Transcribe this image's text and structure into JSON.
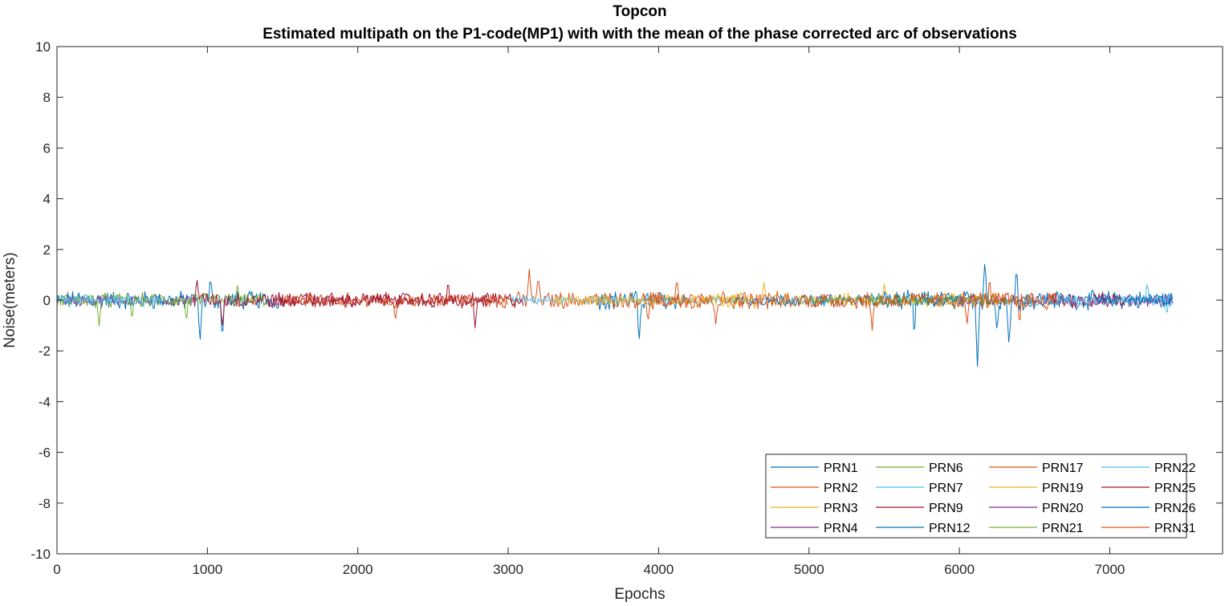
{
  "chart_data": {
    "type": "line",
    "title": "Topcon",
    "subtitle": "Estimated multipath on the P1-code(MP1) with with the mean of the phase corrected arc of observations",
    "xlabel": "Epochs",
    "ylabel": "Noise(meters)",
    "xlim": [
      0,
      7750
    ],
    "ylim": [
      -10,
      10
    ],
    "xticks": [
      0,
      1000,
      2000,
      3000,
      4000,
      5000,
      6000,
      7000
    ],
    "yticks": [
      10,
      8,
      6,
      4,
      2,
      0,
      -2,
      -4,
      -6,
      -8,
      -10
    ],
    "grid": false,
    "legend_position": "bottom-right",
    "legend_columns": 4,
    "series": [
      {
        "name": "PRN1",
        "color": "#0072BD",
        "segments": [
          [
            0,
            1500
          ],
          [
            3600,
            4200
          ],
          [
            5400,
            7420
          ]
        ],
        "amp": 0.32,
        "spikes": [
          [
            950,
            -1.7
          ],
          [
            1020,
            0.9
          ],
          [
            1100,
            -1.6
          ],
          [
            3870,
            -1.7
          ],
          [
            5700,
            -1.5
          ],
          [
            6120,
            -2.6
          ],
          [
            6170,
            1.6
          ],
          [
            6250,
            -1.2
          ],
          [
            6330,
            -1.9
          ],
          [
            6380,
            1.3
          ]
        ]
      },
      {
        "name": "PRN2",
        "color": "#D95319",
        "segments": [
          [
            2900,
            4300
          ]
        ],
        "amp": 0.28,
        "spikes": [
          [
            3140,
            1.2
          ],
          [
            3200,
            1.0
          ],
          [
            3930,
            -0.9
          ],
          [
            4120,
            0.9
          ]
        ]
      },
      {
        "name": "PRN3",
        "color": "#EDB120",
        "segments": [
          [
            4300,
            6300
          ]
        ],
        "amp": 0.25,
        "spikes": [
          [
            4700,
            0.7
          ],
          [
            5500,
            0.6
          ]
        ]
      },
      {
        "name": "PRN4",
        "color": "#7E2F8E",
        "segments": [
          [
            0,
            900
          ],
          [
            7100,
            7420
          ]
        ],
        "amp": 0.2,
        "spikes": []
      },
      {
        "name": "PRN6",
        "color": "#77AC30",
        "segments": [
          [
            0,
            1400
          ]
        ],
        "amp": 0.25,
        "spikes": [
          [
            280,
            -1.0
          ],
          [
            500,
            -0.8
          ],
          [
            860,
            -0.9
          ],
          [
            1200,
            0.6
          ]
        ]
      },
      {
        "name": "PRN7",
        "color": "#4DBEEE",
        "segments": [
          [
            3000,
            5200
          ]
        ],
        "amp": 0.14,
        "spikes": []
      },
      {
        "name": "PRN9",
        "color": "#A2142F",
        "segments": [
          [
            900,
            3100
          ],
          [
            6600,
            7100
          ]
        ],
        "amp": 0.27,
        "spikes": [
          [
            1100,
            -1.0
          ],
          [
            2780,
            -1.1
          ],
          [
            2600,
            0.8
          ],
          [
            930,
            0.9
          ]
        ]
      },
      {
        "name": "PRN12",
        "color": "#0072BD",
        "segments": [
          [
            4500,
            6200
          ]
        ],
        "amp": 0.2,
        "spikes": []
      },
      {
        "name": "PRN17",
        "color": "#D95319",
        "segments": [
          [
            1500,
            3000
          ]
        ],
        "amp": 0.22,
        "spikes": [
          [
            2250,
            -0.8
          ]
        ]
      },
      {
        "name": "PRN19",
        "color": "#EDB120",
        "segments": [
          [
            3300,
            4600
          ]
        ],
        "amp": 0.18,
        "spikes": []
      },
      {
        "name": "PRN20",
        "color": "#7E2F8E",
        "segments": [
          [
            6000,
            7000
          ]
        ],
        "amp": 0.18,
        "spikes": []
      },
      {
        "name": "PRN21",
        "color": "#77AC30",
        "segments": [
          [
            5000,
            6500
          ]
        ],
        "amp": 0.16,
        "spikes": []
      },
      {
        "name": "PRN22",
        "color": "#4DBEEE",
        "segments": [
          [
            6400,
            7420
          ],
          [
            0,
            700
          ]
        ],
        "amp": 0.18,
        "spikes": [
          [
            7250,
            0.7
          ],
          [
            7380,
            -0.6
          ]
        ]
      },
      {
        "name": "PRN25",
        "color": "#A2142F",
        "segments": [
          [
            1400,
            2900
          ]
        ],
        "amp": 0.22,
        "spikes": []
      },
      {
        "name": "PRN26",
        "color": "#0072BD",
        "segments": [
          [
            6900,
            7420
          ]
        ],
        "amp": 0.15,
        "spikes": []
      },
      {
        "name": "PRN31",
        "color": "#D95319",
        "segments": [
          [
            3900,
            6650
          ]
        ],
        "amp": 0.3,
        "spikes": [
          [
            5420,
            -1.2
          ],
          [
            6050,
            -1.0
          ],
          [
            6200,
            0.9
          ],
          [
            6400,
            -1.0
          ],
          [
            4380,
            -0.9
          ]
        ]
      }
    ]
  }
}
